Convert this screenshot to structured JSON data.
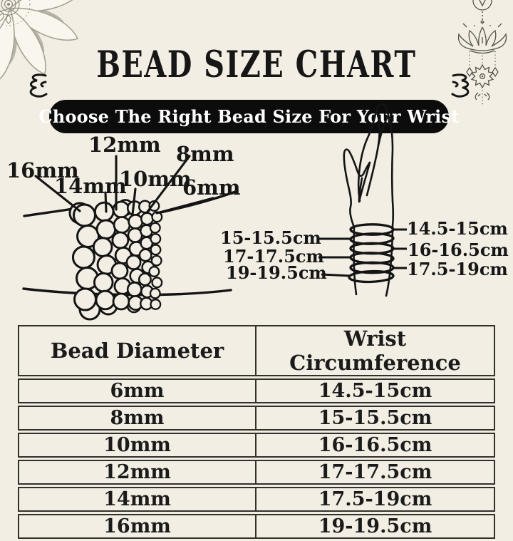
{
  "title": "BEAD SIZE CHART",
  "banner": "Choose The Right Bead Size For Your Wrist",
  "bead": {
    "labels": [
      "16mm",
      "14mm",
      "12mm",
      "10mm",
      "8mm",
      "6mm"
    ]
  },
  "wrist": {
    "left": [
      "15-15.5cm",
      "17-17.5cm",
      "19-19.5cm"
    ],
    "right": [
      "14.5-15cm",
      "16-16.5cm",
      "17.5-19cm"
    ]
  },
  "table": {
    "headers": [
      "Bead Diameter",
      "Wrist Circumference"
    ],
    "rows": [
      [
        "6mm",
        "14.5-15cm"
      ],
      [
        "8mm",
        "15-15.5cm"
      ],
      [
        "10mm",
        "16-16.5cm"
      ],
      [
        "12mm",
        "17-17.5cm"
      ],
      [
        "14mm",
        "17.5-19cm"
      ],
      [
        "16mm",
        "19-19.5cm"
      ]
    ]
  },
  "chart_data": {
    "type": "table",
    "columns": [
      "Bead Diameter",
      "Wrist Circumference"
    ],
    "rows": [
      [
        "6mm",
        "14.5-15cm"
      ],
      [
        "8mm",
        "15-15.5cm"
      ],
      [
        "10mm",
        "16-16.5cm"
      ],
      [
        "12mm",
        "17-17.5cm"
      ],
      [
        "14mm",
        "17.5-19cm"
      ],
      [
        "16mm",
        "19-19.5cm"
      ]
    ]
  },
  "colors": {
    "background": "#f2eee3",
    "ink": "#141414",
    "banner_bg": "#0c0c0c",
    "banner_text": "#ffffff",
    "ornament_gray": "#a6a298",
    "ornament_dark_gray": "#55524a"
  }
}
